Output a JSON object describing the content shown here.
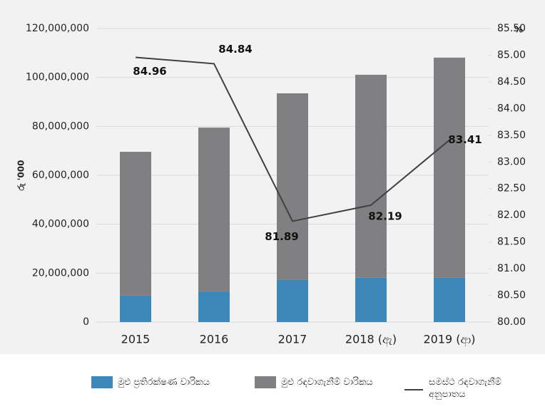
{
  "chart_data": {
    "type": "bar",
    "categories": [
      "2015",
      "2016",
      "2017",
      "2018 (ඇ)",
      "2019 (ආ)"
    ],
    "series": [
      {
        "name": "මුළු ප්‍රතිරක්ෂණ වාරිකය",
        "color": "#3e87b9",
        "values": [
          10800000,
          12500000,
          17200000,
          18100000,
          18100000
        ]
      },
      {
        "name": "මුළු රඳවාගැනීම් වාරිකය",
        "color": "#808083",
        "values": [
          58800000,
          67000000,
          76300000,
          83000000,
          90000000
        ]
      },
      {
        "name": "සමස්ථ රඳවාගැනීම් අනුපාතය",
        "color": "#404040",
        "type": "line",
        "axis": "y2",
        "values": [
          84.96,
          84.84,
          81.89,
          82.19,
          83.41
        ]
      }
    ],
    "ylabel": "රු '000",
    "y2label": "%",
    "ylim": [
      0,
      120000000
    ],
    "yticks": [
      0,
      {
        "value": 20000000,
        "label": "20,000,000"
      },
      {
        "value": 40000000,
        "label": "40,000,000"
      },
      {
        "value": 60000000,
        "label": "60,000,000"
      },
      {
        "value": 80000000,
        "label": "80,000,000"
      },
      {
        "value": 100000000,
        "label": "100,000,000"
      },
      {
        "value": 120000000,
        "label": "120,000,000"
      }
    ],
    "y2lim": [
      80,
      85.5
    ],
    "y2ticks": [
      {
        "value": 80,
        "label": "80.00"
      },
      {
        "value": 80.5,
        "label": "80.50"
      },
      {
        "value": 81,
        "label": "81.00"
      },
      {
        "value": 81.5,
        "label": "81.50"
      },
      {
        "value": 82,
        "label": "82.00"
      },
      {
        "value": 82.5,
        "label": "82.50"
      },
      {
        "value": 83,
        "label": "83.00"
      },
      {
        "value": 83.5,
        "label": "83.50"
      },
      {
        "value": 84,
        "label": "84.00"
      },
      {
        "value": 84.5,
        "label": "84.50"
      },
      {
        "value": 85,
        "label": "85.00"
      },
      {
        "value": 85.5,
        "label": "85.50"
      }
    ],
    "grid": true,
    "stacked": true,
    "legend": "bottom"
  }
}
